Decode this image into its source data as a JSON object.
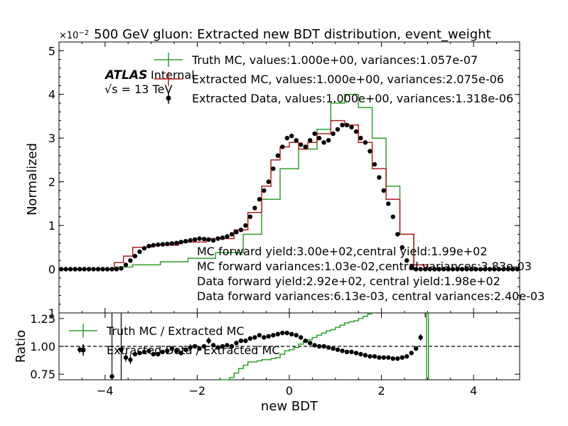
{
  "title": "500 GeV gluon: Extracted new BDT distribution, event_weight",
  "exponent_base": "×10",
  "exponent_power": "−2",
  "atlas_label": "ATLAS",
  "atlas_status": "Internal",
  "energy_label": "√s = 13 TeV",
  "colors": {
    "truth": "#2ca02c",
    "extracted": "#b22222",
    "data": "#000000"
  },
  "chart_data": [
    {
      "type": "line",
      "panel": "main",
      "ylabel": "Normalized",
      "xlim": [
        -5,
        5
      ],
      "ylim": [
        -1,
        5.2
      ],
      "y_scale_factor": "1e-2",
      "xticks": [
        -4,
        -2,
        0,
        2,
        4
      ],
      "yticks": [
        0,
        1,
        2,
        3,
        4,
        5
      ],
      "bin_edges_range": [
        -5,
        5
      ],
      "bin_width": 0.1,
      "legend_position": "upper-right",
      "legend": [
        "Truth MC, values:1.000e+00, variances:1.057e-07",
        "Extracted MC, values:1.000e+00, variances:2.075e-06",
        "Extracted Data, values:1.000e+00, variances:1.318e-06"
      ],
      "annotations": [
        "MC forward yield:3.00e+02,central yield:1.99e+02",
        "MC forward variances:1.03e-02,central variances:3.83e-03",
        "Data forward yield:2.92e+02, central yield:1.98e+02",
        "Data forward variances:6.13e-03, central variances:2.40e-03"
      ],
      "series": [
        {
          "name": "Truth MC",
          "style": "step",
          "segment_x": [
            [
              -5.0,
              -3.8
            ],
            [
              -3.8,
              -3.4
            ],
            [
              -3.4,
              -2.8
            ],
            [
              -2.8,
              -2.2
            ],
            [
              -2.2,
              -1.6
            ],
            [
              -1.6,
              -1.0
            ],
            [
              -1.0,
              -0.6
            ],
            [
              -0.6,
              -0.2
            ],
            [
              -0.2,
              0.2
            ],
            [
              0.2,
              0.6
            ],
            [
              0.6,
              0.9
            ],
            [
              0.9,
              1.2
            ],
            [
              1.2,
              1.5
            ],
            [
              1.5,
              1.8
            ],
            [
              1.8,
              2.1
            ],
            [
              2.1,
              2.4
            ],
            [
              2.4,
              2.7
            ],
            [
              2.7,
              3.0
            ],
            [
              3.0,
              5.0
            ]
          ],
          "values": [
            0.0,
            0.05,
            0.1,
            0.17,
            0.25,
            0.38,
            0.8,
            1.6,
            2.3,
            2.75,
            3.2,
            3.8,
            4.0,
            3.7,
            3.0,
            1.9,
            0.8,
            0.1,
            0.0
          ]
        },
        {
          "name": "Extracted MC",
          "style": "step",
          "segment_x": [
            [
              -5.0,
              -3.8
            ],
            [
              -3.8,
              -3.6
            ],
            [
              -3.6,
              -3.4
            ],
            [
              -3.4,
              -3.0
            ],
            [
              -3.0,
              -2.4
            ],
            [
              -2.4,
              -1.8
            ],
            [
              -1.8,
              -1.2
            ],
            [
              -1.2,
              -0.9
            ],
            [
              -0.9,
              -0.6
            ],
            [
              -0.6,
              -0.4
            ],
            [
              -0.4,
              -0.2
            ],
            [
              -0.2,
              0.0
            ],
            [
              0.0,
              0.2
            ],
            [
              0.2,
              0.4
            ],
            [
              0.4,
              0.6
            ],
            [
              0.6,
              0.9
            ],
            [
              0.9,
              1.2
            ],
            [
              1.2,
              1.5
            ],
            [
              1.5,
              1.8
            ],
            [
              1.8,
              2.1
            ],
            [
              2.1,
              2.4
            ],
            [
              2.4,
              2.7
            ],
            [
              2.7,
              3.0
            ],
            [
              3.0,
              5.0
            ]
          ],
          "values": [
            0.0,
            0.15,
            0.3,
            0.5,
            0.55,
            0.62,
            0.7,
            0.9,
            1.3,
            1.9,
            2.5,
            2.8,
            2.9,
            2.75,
            2.9,
            3.1,
            3.4,
            3.3,
            2.9,
            2.3,
            1.6,
            0.8,
            0.1,
            0.0
          ]
        },
        {
          "name": "Extracted Data",
          "style": "points",
          "x": [
            -4.95,
            -4.85,
            -4.75,
            -4.65,
            -4.55,
            -4.45,
            -4.35,
            -4.25,
            -4.15,
            -4.05,
            -3.95,
            -3.85,
            -3.75,
            -3.65,
            -3.55,
            -3.45,
            -3.35,
            -3.25,
            -3.15,
            -3.05,
            -2.95,
            -2.85,
            -2.75,
            -2.65,
            -2.55,
            -2.45,
            -2.35,
            -2.25,
            -2.15,
            -2.05,
            -1.95,
            -1.85,
            -1.75,
            -1.65,
            -1.55,
            -1.45,
            -1.35,
            -1.25,
            -1.15,
            -1.05,
            -0.95,
            -0.85,
            -0.75,
            -0.65,
            -0.55,
            -0.45,
            -0.35,
            -0.25,
            -0.15,
            -0.05,
            0.05,
            0.15,
            0.25,
            0.35,
            0.45,
            0.55,
            0.65,
            0.75,
            0.85,
            0.95,
            1.05,
            1.15,
            1.25,
            1.35,
            1.45,
            1.55,
            1.65,
            1.75,
            1.85,
            1.95,
            2.05,
            2.15,
            2.25,
            2.35,
            2.45,
            2.55,
            2.65,
            2.75,
            2.85,
            2.95,
            3.05,
            3.15,
            3.25,
            3.35,
            3.45,
            3.55,
            3.65,
            3.75,
            3.85,
            3.95,
            4.05,
            4.15,
            4.25,
            4.35,
            4.45,
            4.55,
            4.65,
            4.75,
            4.85,
            4.95
          ],
          "values": [
            0.0,
            0.0,
            0.0,
            0.0,
            0.0,
            0.0,
            0.0,
            0.0,
            0.0,
            0.0,
            0.0,
            0.0,
            0.0,
            0.02,
            0.1,
            0.2,
            0.3,
            0.4,
            0.48,
            0.53,
            0.55,
            0.56,
            0.57,
            0.58,
            0.59,
            0.6,
            0.62,
            0.64,
            0.66,
            0.68,
            0.7,
            0.69,
            0.68,
            0.66,
            0.7,
            0.72,
            0.75,
            0.8,
            0.85,
            0.9,
            1.0,
            1.2,
            1.4,
            1.6,
            1.8,
            2.0,
            2.3,
            2.6,
            2.8,
            3.0,
            3.05,
            2.95,
            2.85,
            2.8,
            2.95,
            3.1,
            3.0,
            2.9,
            2.95,
            3.1,
            3.2,
            3.3,
            3.3,
            3.25,
            3.15,
            3.0,
            2.9,
            2.7,
            2.4,
            2.1,
            1.8,
            1.5,
            1.2,
            0.8,
            0.5,
            0.2,
            0.05,
            0.0,
            0.0,
            0.0,
            0.0,
            0.0,
            0.0,
            0.0,
            0.0,
            0.0,
            0.0,
            0.0,
            0.0,
            0.0,
            0.0,
            0.0,
            0.0,
            0.0,
            0.0,
            0.0,
            0.0,
            0.0,
            0.0,
            0.0
          ]
        }
      ]
    },
    {
      "type": "line",
      "panel": "ratio",
      "xlabel": "new BDT",
      "ylabel": "Ratio",
      "xlim": [
        -5,
        5
      ],
      "ylim": [
        0.7,
        1.3
      ],
      "yticks": [
        0.75,
        1.0,
        1.25
      ],
      "ytick_labels": [
        "0.75",
        "1.00",
        "1.25"
      ],
      "xticks": [
        -4,
        -2,
        0,
        2,
        4
      ],
      "reference_line": 1.0,
      "legend": [
        "Truth MC / Extracted MC",
        "Extracted Data / Extracted MC"
      ],
      "series": [
        {
          "name": "Truth MC / Extracted MC",
          "style": "step",
          "x_start": -1.5,
          "bin_width": 0.1,
          "values": [
            0.68,
            0.7,
            0.72,
            0.76,
            0.8,
            0.83,
            0.86,
            0.86,
            0.87,
            0.88,
            0.88,
            0.89,
            0.9,
            0.93,
            0.96,
            0.97,
            0.99,
            1.02,
            1.04,
            1.06,
            1.08,
            1.1,
            1.12,
            1.14,
            1.15,
            1.17,
            1.19,
            1.21,
            1.22,
            1.23,
            1.25,
            1.27,
            1.29
          ]
        },
        {
          "name": "Extracted Data / Extracted MC",
          "style": "points",
          "x": [
            -4.55,
            -3.85,
            -3.65,
            -3.55,
            -3.45,
            -3.35,
            -3.25,
            -3.15,
            -3.05,
            -2.95,
            -2.85,
            -2.75,
            -2.65,
            -2.55,
            -2.45,
            -2.35,
            -2.25,
            -2.15,
            -2.05,
            -1.95,
            -1.85,
            -1.75,
            -1.65,
            -1.55,
            -1.45,
            -1.35,
            -1.25,
            -1.15,
            -1.05,
            -0.95,
            -0.85,
            -0.75,
            -0.65,
            -0.55,
            -0.45,
            -0.35,
            -0.25,
            -0.15,
            -0.05,
            0.05,
            0.15,
            0.25,
            0.35,
            0.45,
            0.55,
            0.65,
            0.75,
            0.85,
            0.95,
            1.05,
            1.15,
            1.25,
            1.35,
            1.45,
            1.55,
            1.65,
            1.75,
            1.85,
            1.95,
            2.05,
            2.15,
            2.25,
            2.35,
            2.45,
            2.55,
            2.65,
            2.75,
            2.85
          ],
          "values": [
            0.97,
            0.73,
            0.97,
            0.9,
            0.88,
            0.93,
            0.94,
            0.95,
            0.96,
            0.93,
            0.93,
            0.95,
            0.96,
            0.98,
            0.96,
            0.94,
            0.97,
            0.99,
            1.0,
            0.98,
            1.0,
            1.05,
            1.01,
            0.99,
            1.0,
            1.01,
            1.0,
            1.03,
            1.05,
            1.05,
            1.07,
            1.08,
            1.1,
            1.08,
            1.09,
            1.1,
            1.11,
            1.12,
            1.12,
            1.11,
            1.1,
            1.08,
            1.05,
            1.03,
            1.01,
            1.0,
            1.0,
            0.99,
            0.98,
            0.97,
            0.96,
            0.95,
            0.95,
            0.94,
            0.93,
            0.92,
            0.91,
            0.91,
            0.9,
            0.9,
            0.9,
            0.89,
            0.89,
            0.9,
            0.91,
            0.94,
            0.98,
            1.08
          ]
        }
      ]
    }
  ]
}
